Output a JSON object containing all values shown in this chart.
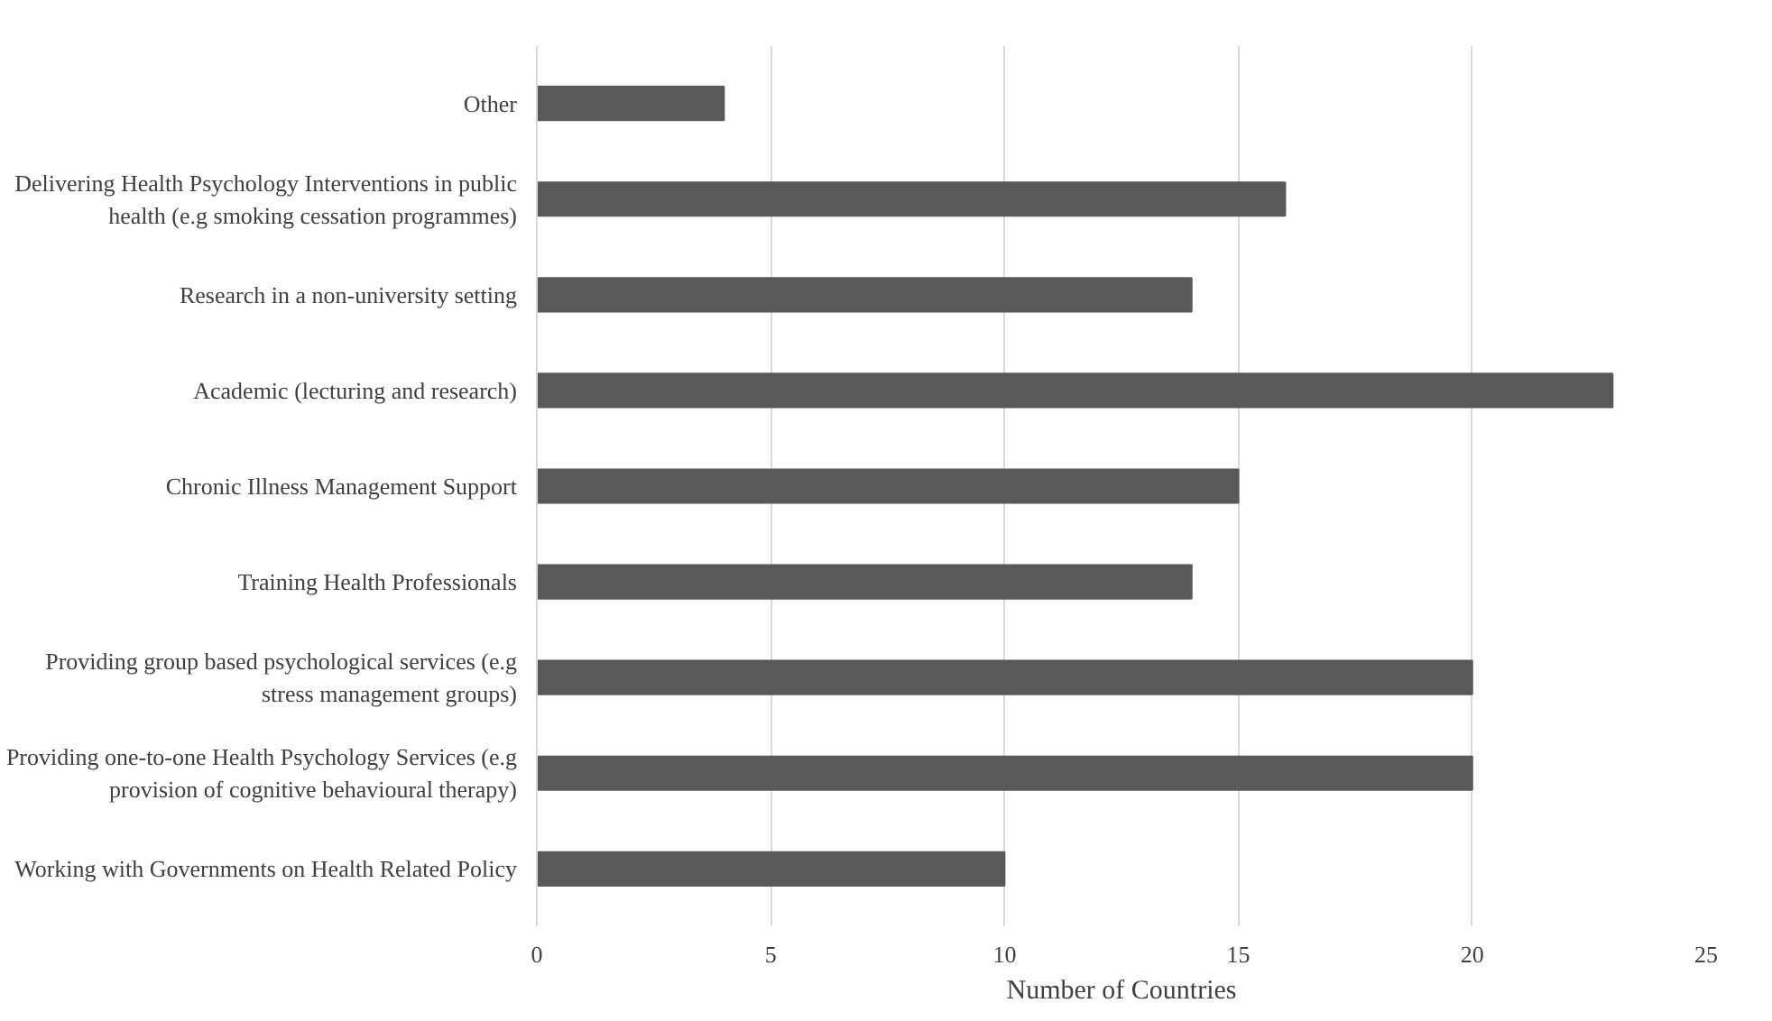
{
  "chart_data": {
    "type": "bar",
    "orientation": "horizontal",
    "xlabel": "Number of Countries",
    "categories": [
      "Other",
      "Delivering Health Psychology Interventions in public health (e.g smoking cessation programmes)",
      "Research in a non-university setting",
      "Academic (lecturing and research)",
      "Chronic Illness Management Support",
      "Training Health Professionals",
      "Providing group based psychological services (e.g stress management groups)",
      "Providing one-to-one Health Psychology Services (e.g provision of cognitive behavioural therapy)",
      "Working with Governments on Health Related Policy"
    ],
    "values": [
      4,
      16,
      14,
      23,
      15,
      14,
      20,
      20,
      10
    ],
    "color": "#595959",
    "xlim": [
      0,
      25
    ],
    "xticks": [
      0,
      5,
      10,
      15,
      20,
      25
    ],
    "grid": "x"
  }
}
